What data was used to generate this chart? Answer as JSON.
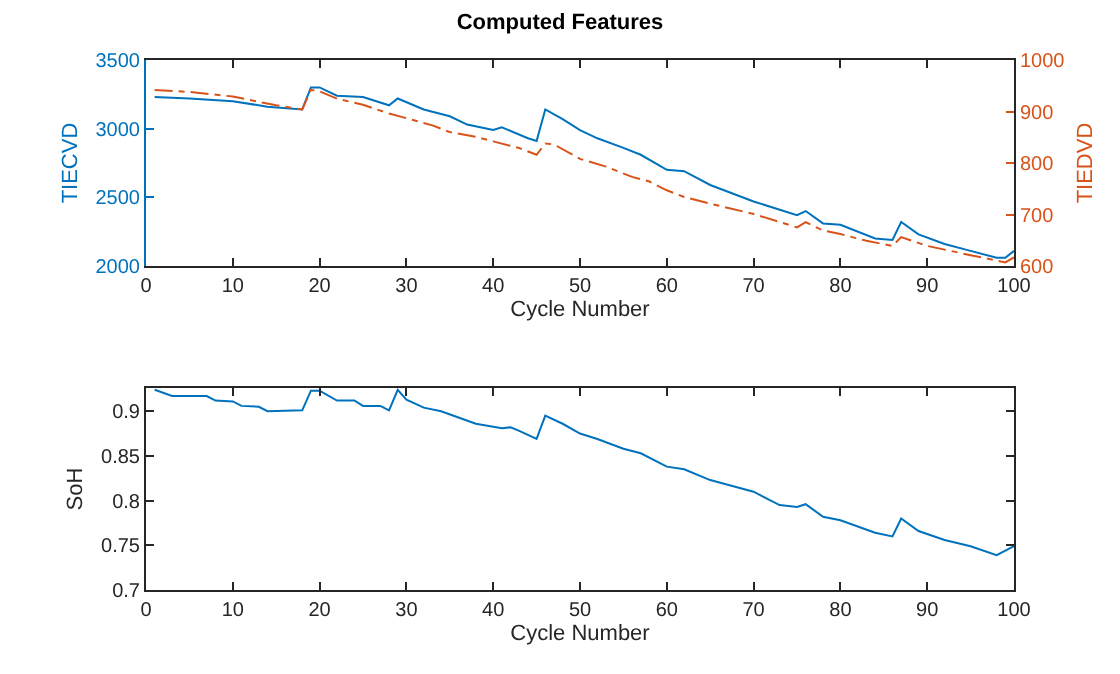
{
  "chart_data": [
    {
      "type": "line",
      "title": "Computed Features",
      "xlabel": "Cycle Number",
      "ylabel": "TIECVD",
      "y2label": "TIEDVD",
      "xlim": [
        0,
        100
      ],
      "xticks": [
        0,
        10,
        20,
        30,
        40,
        50,
        60,
        70,
        80,
        90,
        100
      ],
      "ylim": [
        2000,
        3500
      ],
      "yticks": [
        2000,
        2500,
        3000,
        3500
      ],
      "y2lim": [
        600,
        1000
      ],
      "y2ticks": [
        600,
        700,
        800,
        900,
        1000
      ],
      "grid": false,
      "marker": "none",
      "series": [
        {
          "color": "#0072bd",
          "axis": "y",
          "line_style": "solid",
          "x": [
            1,
            5,
            10,
            14,
            18,
            19,
            20,
            22,
            25,
            28,
            29,
            32,
            35,
            37,
            40,
            41,
            44,
            45,
            46,
            48,
            50,
            52,
            55,
            57,
            60,
            62,
            65,
            70,
            75,
            76,
            78,
            80,
            84,
            86,
            87,
            89,
            92,
            95,
            98,
            99,
            100
          ],
          "values": [
            3230,
            3220,
            3200,
            3160,
            3140,
            3300,
            3300,
            3240,
            3230,
            3170,
            3220,
            3140,
            3090,
            3030,
            2990,
            3010,
            2930,
            2910,
            3140,
            3070,
            2990,
            2930,
            2860,
            2810,
            2700,
            2690,
            2590,
            2470,
            2370,
            2400,
            2310,
            2300,
            2200,
            2190,
            2320,
            2230,
            2160,
            2110,
            2060,
            2060,
            2110
          ]
        },
        {
          "color": "#d95319",
          "axis": "y2",
          "line_style": "dashed",
          "x": [
            1,
            5,
            10,
            15,
            18,
            19,
            20,
            22,
            25,
            28,
            30,
            33,
            35,
            38,
            40,
            43,
            45,
            46,
            47,
            50,
            53,
            56,
            58,
            60,
            62,
            65,
            70,
            75,
            76,
            78,
            80,
            83,
            86,
            87,
            90,
            95,
            99,
            100
          ],
          "values": [
            942,
            938,
            929,
            912,
            904,
            942,
            939,
            925,
            913,
            896,
            887,
            873,
            860,
            851,
            842,
            829,
            816,
            838,
            836,
            808,
            793,
            773,
            764,
            747,
            734,
            721,
            701,
            675,
            685,
            669,
            662,
            649,
            639,
            656,
            639,
            621,
            607,
            617
          ]
        }
      ]
    },
    {
      "type": "line",
      "xlabel": "Cycle Number",
      "ylabel": "SoH",
      "xlim": [
        0,
        100
      ],
      "xticks": [
        0,
        10,
        20,
        30,
        40,
        50,
        60,
        70,
        80,
        90,
        100
      ],
      "ylim": [
        0.7,
        0.926
      ],
      "yticks": [
        0.7,
        0.75,
        0.8,
        0.85,
        0.9
      ],
      "grid": false,
      "marker": "none",
      "series": [
        {
          "color": "#0072bd",
          "line_style": "solid",
          "x": [
            1,
            3,
            7,
            8,
            10,
            11,
            13,
            14,
            18,
            19,
            20,
            22,
            24,
            25,
            27,
            28,
            29,
            30,
            32,
            34,
            36,
            38,
            41,
            42,
            43,
            45,
            46,
            48,
            50,
            52,
            55,
            57,
            60,
            62,
            65,
            70,
            73,
            75,
            76,
            78,
            80,
            84,
            86,
            87,
            89,
            92,
            95,
            98,
            100
          ],
          "values": [
            0.924,
            0.917,
            0.917,
            0.912,
            0.911,
            0.906,
            0.905,
            0.9,
            0.901,
            0.923,
            0.923,
            0.912,
            0.912,
            0.906,
            0.906,
            0.901,
            0.924,
            0.913,
            0.904,
            0.9,
            0.893,
            0.886,
            0.881,
            0.882,
            0.878,
            0.869,
            0.895,
            0.886,
            0.875,
            0.869,
            0.858,
            0.853,
            0.838,
            0.835,
            0.823,
            0.81,
            0.795,
            0.793,
            0.796,
            0.782,
            0.778,
            0.764,
            0.76,
            0.78,
            0.766,
            0.756,
            0.749,
            0.739,
            0.749
          ]
        }
      ]
    }
  ]
}
